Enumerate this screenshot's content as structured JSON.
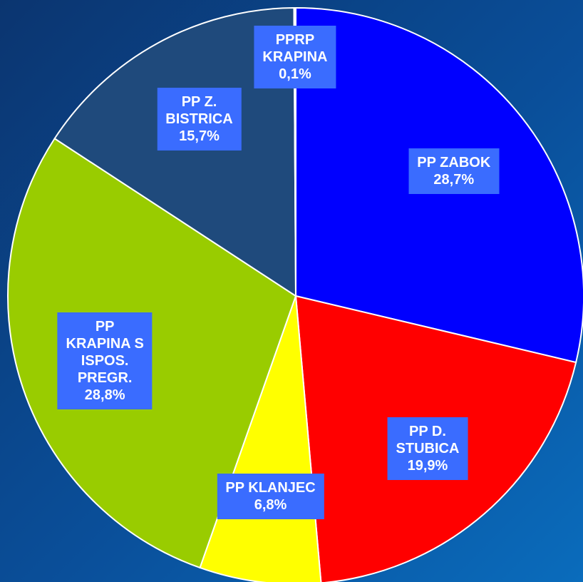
{
  "chart_data": {
    "type": "pie",
    "categories": [
      "PP ZABOK",
      "PP D.\nSTUBICA",
      "PP KLANJEC",
      "PP\nKRAPINA S\nISPOS.\nPREGR.",
      "PP Z.\nBISTRICA",
      "PPRP\nKRAPINA"
    ],
    "values": [
      28.7,
      19.9,
      6.8,
      28.8,
      15.7,
      0.1
    ],
    "value_labels": [
      "28,7%",
      "19,9%",
      "6,8%",
      "28,8%",
      "15,7%",
      "0,1%"
    ],
    "colors": [
      "#0000ff",
      "#ff0000",
      "#ffff00",
      "#99cc00",
      "#1f4a7c",
      "#ffffff"
    ]
  }
}
